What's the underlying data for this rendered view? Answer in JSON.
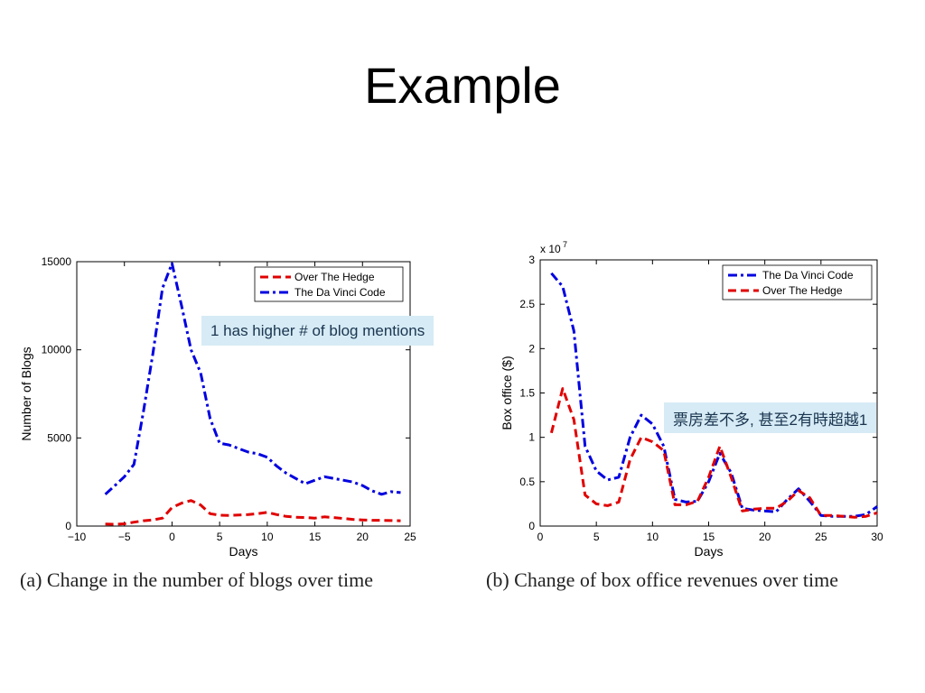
{
  "slide": {
    "title": "Example"
  },
  "callouts": {
    "a": "1 has higher # of blog mentions",
    "b": "票房差不多, 甚至2有時超越1"
  },
  "captions": {
    "a": "(a) Change in the number of blogs over time",
    "b": "(b) Change of box office revenues over time"
  },
  "chart_data": [
    {
      "type": "line",
      "title": "",
      "xlabel": "Days",
      "ylabel": "Number of Blogs",
      "xlim": [
        -10,
        25
      ],
      "ylim": [
        0,
        15000
      ],
      "xticks": [
        -10,
        -5,
        0,
        5,
        10,
        15,
        20,
        25
      ],
      "xtick_labels": [
        "−10",
        "−5",
        "0",
        "5",
        "10",
        "15",
        "20",
        "25"
      ],
      "yticks": [
        0,
        5000,
        10000,
        15000
      ],
      "ytick_labels": [
        "0",
        "5000",
        "10000",
        "15000"
      ],
      "legend_position": "top-right",
      "series": [
        {
          "name": "Over The Hedge",
          "color": "#e00000",
          "dash": "dashed",
          "x": [
            -7,
            -6,
            -5,
            -4,
            -3,
            -2,
            -1,
            0,
            1,
            2,
            3,
            4,
            5,
            6,
            7,
            8,
            9,
            10,
            11,
            12,
            13,
            14,
            15,
            16,
            17,
            18,
            19,
            20,
            21,
            22,
            23,
            24
          ],
          "y": [
            120,
            100,
            130,
            220,
            300,
            350,
            450,
            1050,
            1300,
            1450,
            1200,
            700,
            620,
            600,
            630,
            650,
            700,
            780,
            650,
            550,
            500,
            480,
            450,
            520,
            480,
            430,
            380,
            350,
            330,
            320,
            310,
            300
          ]
        },
        {
          "name": "The Da Vinci Code",
          "color": "#0000e0",
          "dash": "dashdot",
          "x": [
            -7,
            -6,
            -5,
            -4,
            -3,
            -2,
            -1,
            0,
            1,
            2,
            3,
            4,
            5,
            6,
            7,
            8,
            9,
            10,
            11,
            12,
            13,
            14,
            15,
            16,
            17,
            18,
            19,
            20,
            21,
            22,
            23,
            24
          ],
          "y": [
            1800,
            2300,
            2800,
            3500,
            6500,
            9800,
            13500,
            14900,
            12500,
            10000,
            8700,
            6100,
            4700,
            4600,
            4400,
            4200,
            4100,
            3900,
            3400,
            3000,
            2700,
            2400,
            2600,
            2800,
            2700,
            2600,
            2500,
            2300,
            2000,
            1800,
            1950,
            1900
          ]
        }
      ]
    },
    {
      "type": "line",
      "title": "",
      "xlabel": "Days",
      "ylabel": "Box office ($)",
      "y_multiplier_label": "x 10",
      "y_multiplier_exponent": "7",
      "xlim": [
        0,
        30
      ],
      "ylim": [
        0,
        3
      ],
      "xticks": [
        0,
        5,
        10,
        15,
        20,
        25,
        30
      ],
      "xtick_labels": [
        "0",
        "5",
        "10",
        "15",
        "20",
        "25",
        "30"
      ],
      "yticks": [
        0,
        0.5,
        1,
        1.5,
        2,
        2.5,
        3
      ],
      "ytick_labels": [
        "0",
        "0.5",
        "1",
        "1.5",
        "2",
        "2.5",
        "3"
      ],
      "legend_position": "top-right",
      "series": [
        {
          "name": "The Da Vinci Code",
          "color": "#0000e0",
          "dash": "dashdot",
          "x": [
            1,
            2,
            3,
            4,
            5,
            6,
            7,
            8,
            9,
            10,
            11,
            12,
            13,
            14,
            15,
            16,
            17,
            18,
            19,
            20,
            21,
            22,
            23,
            24,
            25,
            26,
            27,
            28,
            29,
            30
          ],
          "y": [
            2.85,
            2.7,
            2.2,
            0.9,
            0.62,
            0.52,
            0.55,
            1.0,
            1.25,
            1.15,
            0.9,
            0.3,
            0.27,
            0.28,
            0.5,
            0.82,
            0.6,
            0.2,
            0.18,
            0.17,
            0.16,
            0.3,
            0.42,
            0.28,
            0.12,
            0.11,
            0.11,
            0.11,
            0.13,
            0.22
          ]
        },
        {
          "name": "Over The Hedge",
          "color": "#e00000",
          "dash": "dashed",
          "x": [
            1,
            2,
            3,
            4,
            5,
            6,
            7,
            8,
            9,
            10,
            11,
            12,
            13,
            14,
            15,
            16,
            17,
            18,
            19,
            20,
            21,
            22,
            23,
            24,
            25,
            26,
            27,
            28,
            29,
            30
          ],
          "y": [
            1.05,
            1.55,
            1.2,
            0.35,
            0.25,
            0.23,
            0.27,
            0.75,
            1.0,
            0.95,
            0.85,
            0.24,
            0.24,
            0.28,
            0.55,
            0.9,
            0.55,
            0.17,
            0.19,
            0.2,
            0.2,
            0.28,
            0.4,
            0.32,
            0.12,
            0.12,
            0.11,
            0.1,
            0.11,
            0.15
          ]
        }
      ]
    }
  ]
}
